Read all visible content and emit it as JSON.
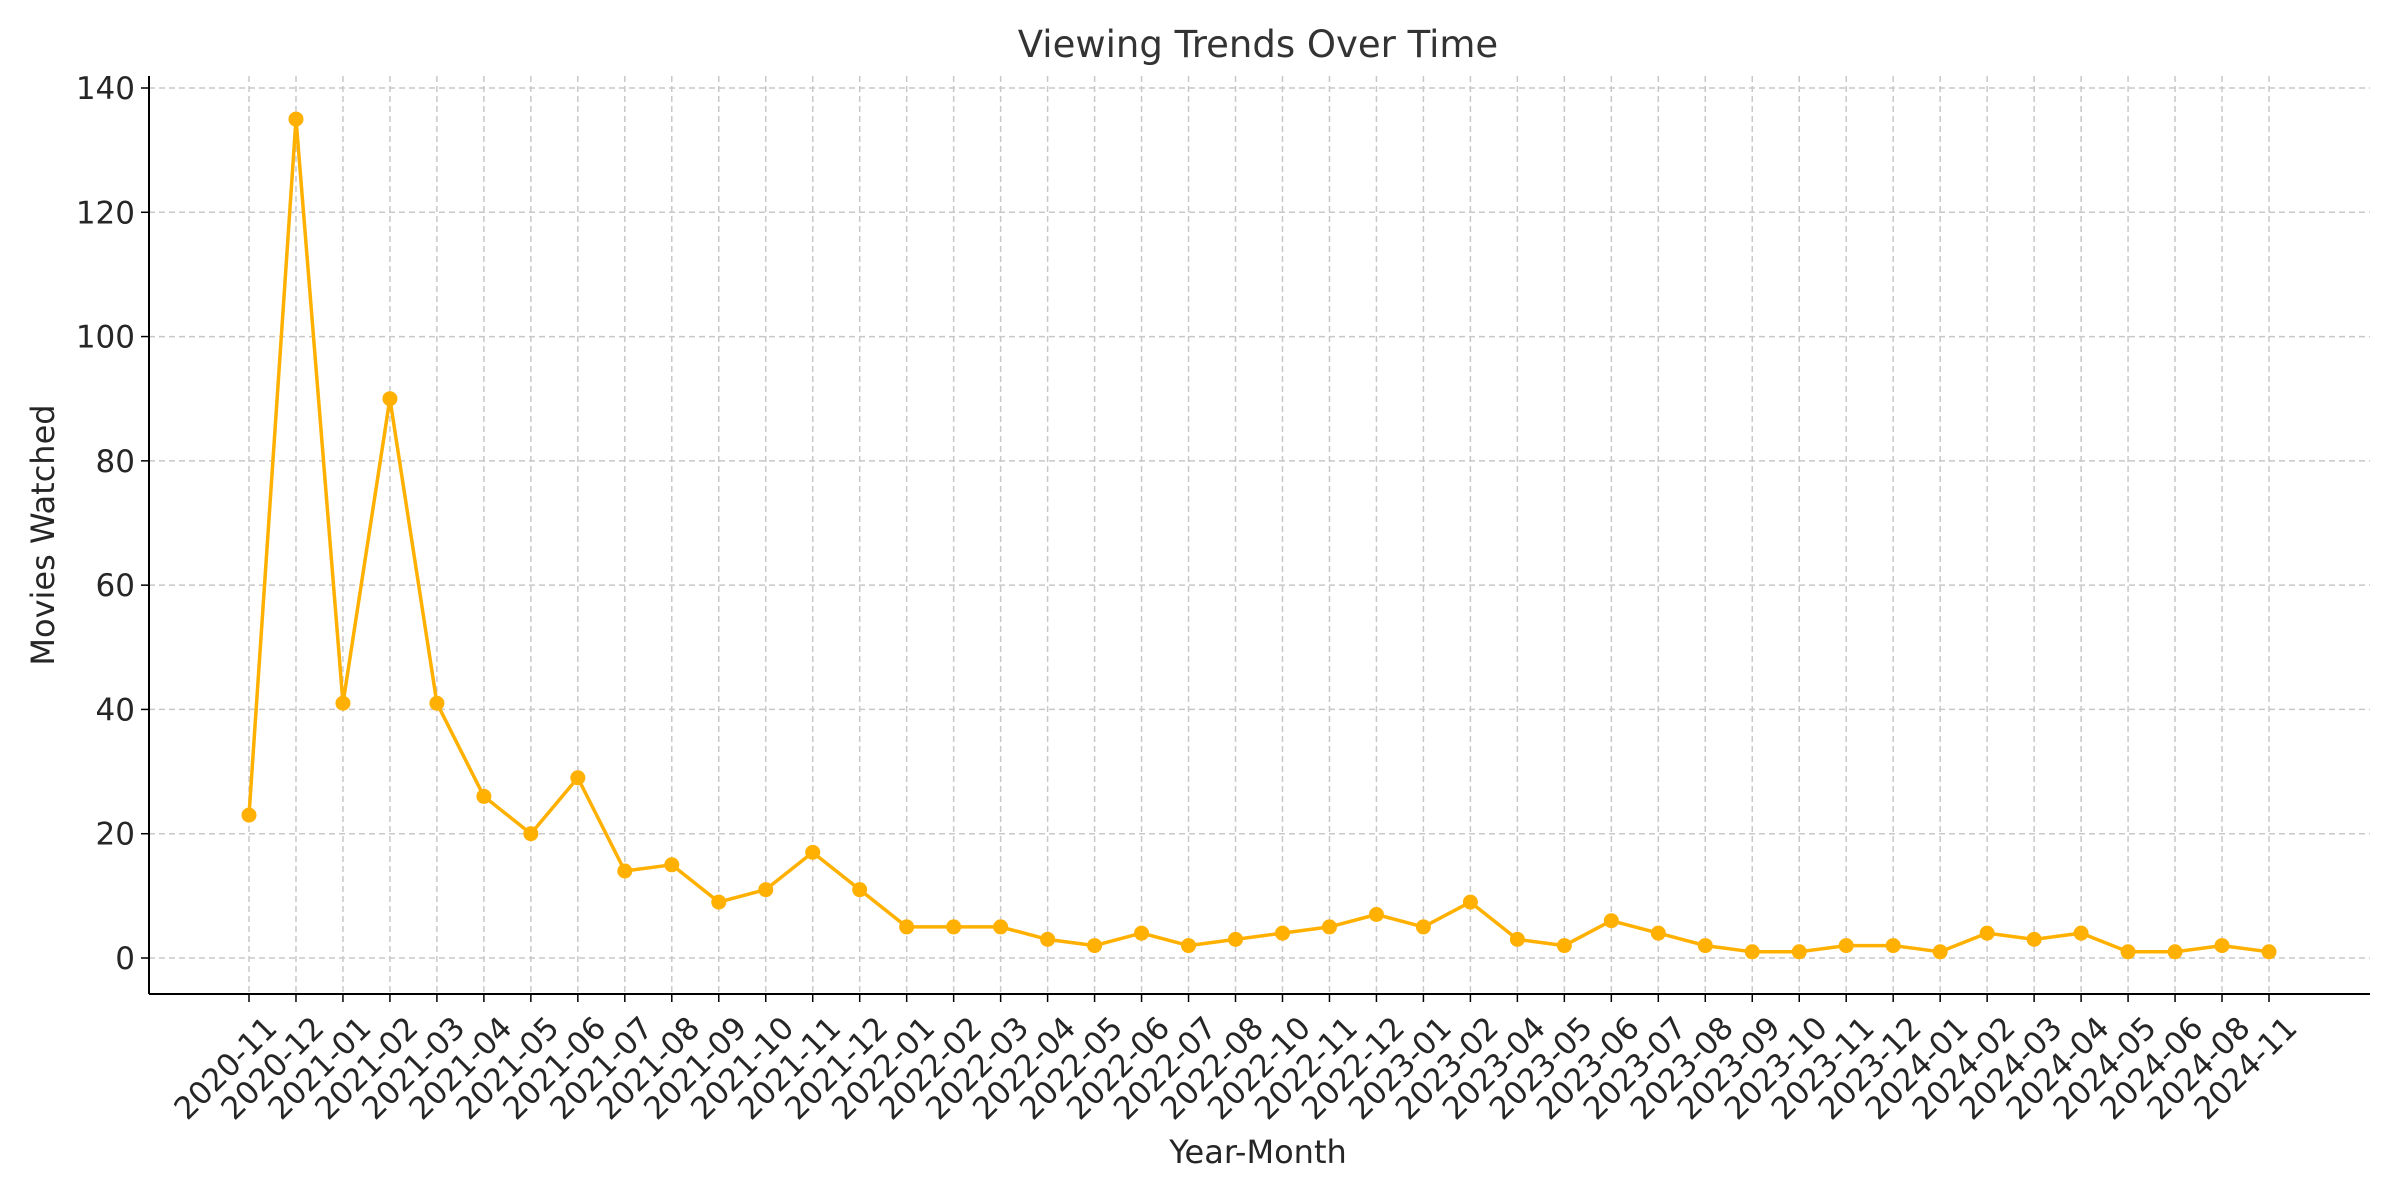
{
  "chart_data": {
    "type": "line",
    "title": "Viewing Trends Over Time",
    "xlabel": "Year-Month",
    "ylabel": "Movies Watched",
    "ylim": [
      -6,
      140
    ],
    "yticks": [
      0,
      20,
      40,
      60,
      80,
      100,
      120,
      140
    ],
    "grid": true,
    "legend": "none",
    "color": "#FFB000",
    "categories": [
      "2020-11",
      "2020-12",
      "2021-01",
      "2021-02",
      "2021-03",
      "2021-04",
      "2021-05",
      "2021-06",
      "2021-07",
      "2021-08",
      "2021-09",
      "2021-10",
      "2021-11",
      "2021-12",
      "2022-01",
      "2022-02",
      "2022-03",
      "2022-04",
      "2022-05",
      "2022-06",
      "2022-07",
      "2022-08",
      "2022-10",
      "2022-11",
      "2022-12",
      "2023-01",
      "2023-02",
      "2023-04",
      "2023-05",
      "2023-06",
      "2023-07",
      "2023-08",
      "2023-09",
      "2023-10",
      "2023-11",
      "2023-12",
      "2024-01",
      "2024-02",
      "2024-03",
      "2024-04",
      "2024-05",
      "2024-06",
      "2024-08",
      "2024-11"
    ],
    "series": [
      {
        "values": [
          23,
          135,
          41,
          90,
          41,
          26,
          20,
          29,
          14,
          15,
          9,
          11,
          17,
          11,
          5,
          5,
          5,
          3,
          2,
          4,
          2,
          3,
          4,
          5,
          7,
          5,
          9,
          3,
          2,
          6,
          4,
          2,
          1,
          1,
          2,
          2,
          1,
          4,
          3,
          4,
          1,
          1,
          2,
          1
        ]
      }
    ]
  }
}
